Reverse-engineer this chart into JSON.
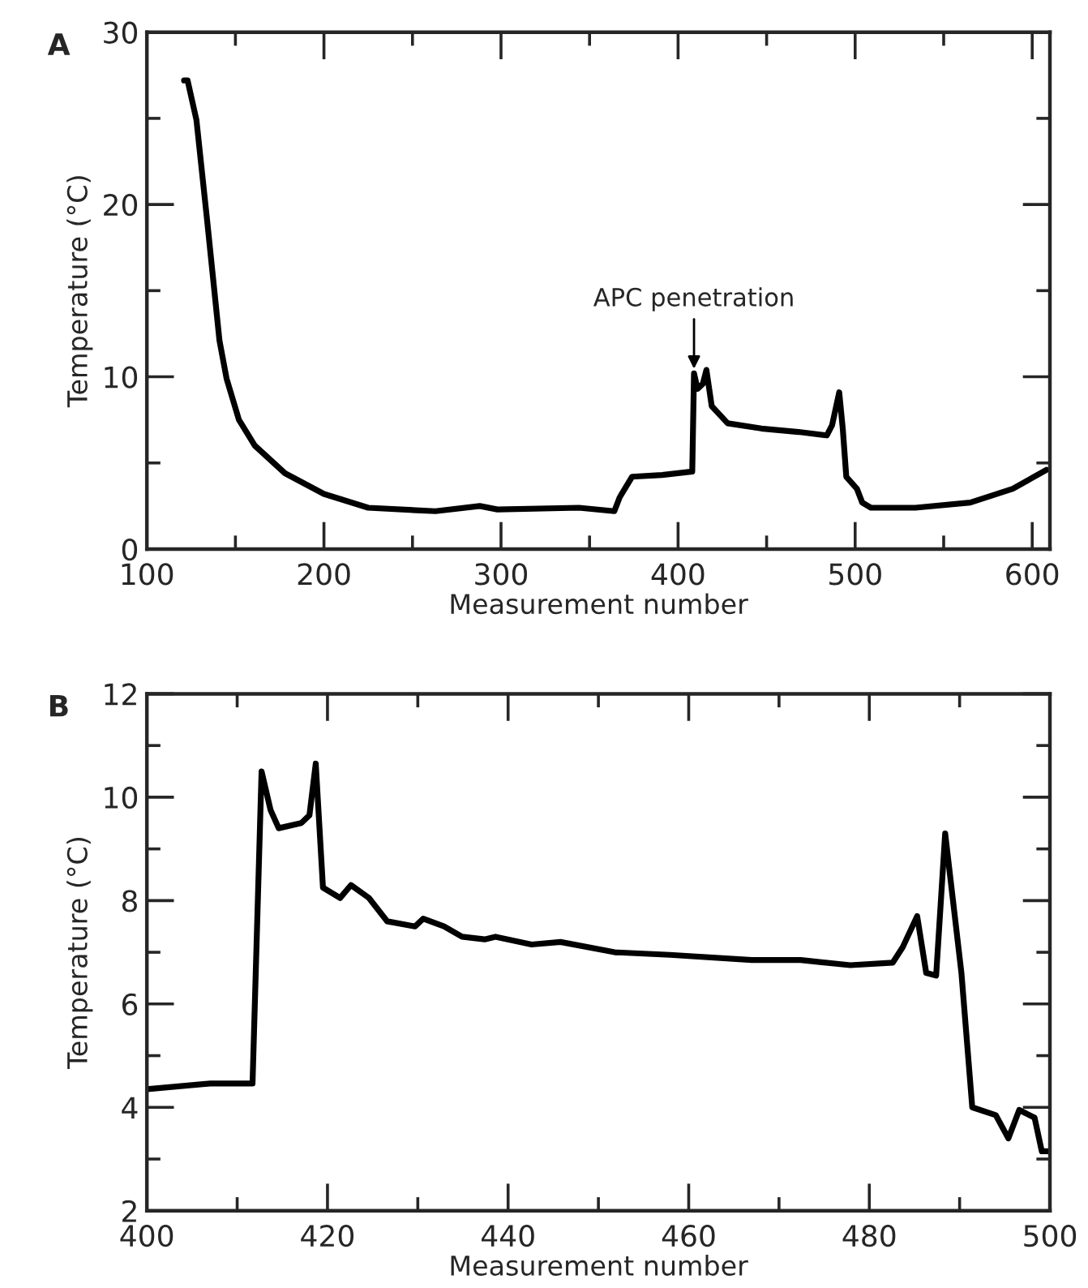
{
  "chart_data": [
    {
      "type": "line",
      "title": "A",
      "xlabel": "Measurement number",
      "ylabel": "Temperature (°C)",
      "xlim": [
        100,
        610
      ],
      "ylim": [
        0,
        30
      ],
      "xticks": [
        100,
        {
          "value": 150,
          "label": null
        },
        200,
        {
          "value": 250,
          "label": null
        },
        300,
        {
          "value": 350,
          "label": null
        },
        400,
        {
          "value": 450,
          "label": null
        },
        500,
        {
          "value": 550,
          "label": null
        },
        600
      ],
      "yticks": [
        0,
        {
          "value": 5,
          "label": null
        },
        10,
        {
          "value": 15,
          "label": null
        },
        20,
        {
          "value": 25,
          "label": null
        },
        30
      ],
      "grid": false,
      "legend": false,
      "marker": "none",
      "line_style": "solid",
      "annotations": [
        {
          "text": "APC penetration",
          "x": 409,
          "y": 10.2
        }
      ],
      "series": [
        {
          "color": "#000000",
          "x": [
            121,
            123,
            128,
            134,
            141,
            145,
            152,
            161,
            178,
            200,
            225,
            263,
            288,
            298,
            344,
            364,
            367,
            374,
            391,
            408,
            409,
            411,
            414,
            416,
            419,
            428,
            447,
            468,
            484,
            487,
            491,
            493,
            495,
            501,
            504,
            509,
            534,
            565,
            589,
            608
          ],
          "values": [
            27.2,
            27.2,
            24.9,
            19.1,
            12.1,
            9.9,
            7.5,
            6.0,
            4.4,
            3.2,
            2.4,
            2.2,
            2.5,
            2.3,
            2.4,
            2.2,
            3.0,
            4.2,
            4.3,
            4.5,
            10.2,
            9.3,
            9.6,
            10.4,
            8.3,
            7.3,
            7.0,
            6.8,
            6.6,
            7.2,
            9.1,
            7.0,
            4.2,
            3.5,
            2.7,
            2.4,
            2.4,
            2.7,
            3.5,
            4.6
          ]
        }
      ]
    },
    {
      "type": "line",
      "title": "B",
      "xlabel": "Measurement number",
      "ylabel": "Temperature (°C)",
      "xlim": [
        400,
        500
      ],
      "ylim": [
        2,
        12
      ],
      "xticks": [
        400,
        {
          "value": 410,
          "label": null
        },
        420,
        {
          "value": 430,
          "label": null
        },
        440,
        {
          "value": 450,
          "label": null
        },
        460,
        {
          "value": 470,
          "label": null
        },
        480,
        {
          "value": 490,
          "label": null
        },
        500
      ],
      "yticks": [
        2,
        {
          "value": 3,
          "label": null
        },
        4,
        {
          "value": 5,
          "label": null
        },
        6,
        {
          "value": 7,
          "label": null
        },
        8,
        {
          "value": 9,
          "label": null
        },
        10,
        {
          "value": 11,
          "label": null
        },
        12
      ],
      "grid": false,
      "legend": false,
      "marker": "none",
      "line_style": "solid",
      "series": [
        {
          "color": "#000000",
          "x": [
            400,
            407,
            411.7,
            412.7,
            413.7,
            414.6,
            417.1,
            418,
            418.7,
            419.5,
            421.4,
            422.6,
            424.6,
            426.6,
            429.7,
            430.6,
            432.9,
            434.9,
            437.4,
            438.6,
            442.6,
            445.8,
            451.8,
            457.9,
            467,
            472.4,
            477.9,
            482.6,
            483.7,
            485.3,
            486.3,
            487.4,
            488.4,
            490.2,
            491.4,
            494,
            495.4,
            496.6,
            498.3,
            499.1,
            499.7
          ],
          "values": [
            4.35,
            4.46,
            4.46,
            10.5,
            9.75,
            9.4,
            9.5,
            9.65,
            10.65,
            8.25,
            8.05,
            8.3,
            8.05,
            7.6,
            7.5,
            7.65,
            7.5,
            7.3,
            7.25,
            7.3,
            7.15,
            7.2,
            7.0,
            6.95,
            6.85,
            6.85,
            6.75,
            6.8,
            7.1,
            7.7,
            6.6,
            6.55,
            9.3,
            6.6,
            4.0,
            3.85,
            3.4,
            3.95,
            3.8,
            3.15,
            3.15
          ]
        }
      ]
    }
  ]
}
